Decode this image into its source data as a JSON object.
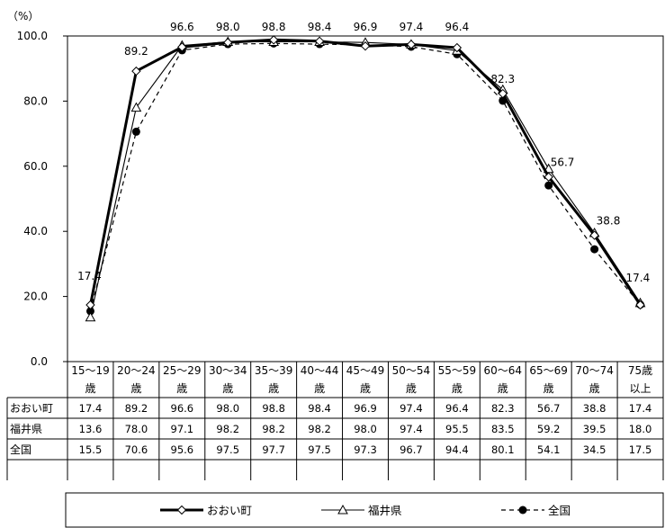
{
  "chart_data": {
    "type": "line",
    "y_unit": "（%）",
    "ylim": [
      0,
      100
    ],
    "y_ticks": [
      "0.0",
      "20.0",
      "40.0",
      "60.0",
      "80.0",
      "100.0"
    ],
    "categories": [
      [
        "15～19",
        "歳"
      ],
      [
        "20～24",
        "歳"
      ],
      [
        "25～29",
        "歳"
      ],
      [
        "30～34",
        "歳"
      ],
      [
        "35～39",
        "歳"
      ],
      [
        "40～44",
        "歳"
      ],
      [
        "45～49",
        "歳"
      ],
      [
        "50～54",
        "歳"
      ],
      [
        "55～59",
        "歳"
      ],
      [
        "60～64",
        "歳"
      ],
      [
        "65～69",
        "歳"
      ],
      [
        "70～74",
        "歳"
      ],
      [
        "75歳",
        "以上"
      ]
    ],
    "series": [
      {
        "name": "おおい町",
        "style": "thick-solid-diamond",
        "values": [
          17.4,
          89.2,
          96.6,
          98.0,
          98.8,
          98.4,
          96.9,
          97.4,
          96.4,
          82.3,
          56.7,
          38.8,
          17.4
        ],
        "value_labels": [
          "17.4",
          "89.2",
          "96.6",
          "98.0",
          "98.8",
          "98.4",
          "96.9",
          "97.4",
          "96.4",
          "82.3",
          "56.7",
          "38.8",
          "17.4"
        ],
        "table_values": [
          "17.4",
          "89.2",
          "96.6",
          "98.0",
          "98.8",
          "98.4",
          "96.9",
          "97.4",
          "96.4",
          "82.3",
          "56.7",
          "38.8",
          "17.4"
        ]
      },
      {
        "name": "福井県",
        "style": "thin-solid-triangle",
        "values": [
          13.6,
          78.0,
          97.1,
          98.2,
          98.2,
          98.2,
          98.0,
          97.4,
          95.5,
          83.5,
          59.2,
          39.5,
          18.0
        ],
        "table_values": [
          "13.6",
          "78.0",
          "97.1",
          "98.2",
          "98.2",
          "98.2",
          "98.0",
          "97.4",
          "95.5",
          "83.5",
          "59.2",
          "39.5",
          "18.0"
        ]
      },
      {
        "name": "全国",
        "style": "dashed-filled-circle",
        "values": [
          15.5,
          70.6,
          95.6,
          97.5,
          97.7,
          97.5,
          97.3,
          96.7,
          94.4,
          80.1,
          54.1,
          34.5,
          17.5
        ],
        "table_values": [
          "15.5",
          "70.6",
          "95.6",
          "97.5",
          "97.7",
          "97.5",
          "97.3",
          "96.7",
          "94.4",
          "80.1",
          "54.1",
          "34.5",
          "17.5"
        ]
      }
    ],
    "grid": false,
    "legend_placement": "bottom",
    "data_table": true,
    "colors": {
      "line": "#000000",
      "background": "#ffffff"
    }
  }
}
